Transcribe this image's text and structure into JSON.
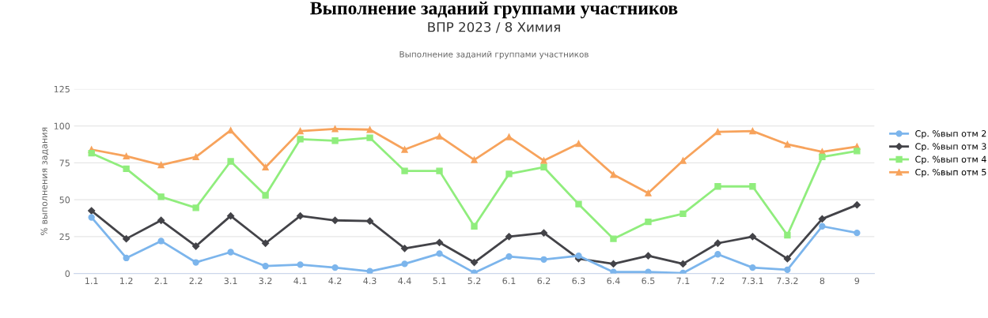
{
  "chart_data": {
    "type": "line",
    "title": "ВПР 2023 / 8 Химия",
    "subtitle": "Выполнение заданий группами участников",
    "annotations": [
      "Выполнение заданий группами участников"
    ],
    "ylabel": "% выполнения задания",
    "categories": [
      "1.1",
      "1.2",
      "2.1",
      "2.2",
      "3.1",
      "3.2",
      "4.1",
      "4.2",
      "4.3",
      "4.4",
      "5.1",
      "5.2",
      "6.1",
      "6.2",
      "6.3",
      "6.4",
      "6.5",
      "7.1",
      "7.2",
      "7.3.1",
      "7.3.2",
      "8",
      "9"
    ],
    "series": [
      {
        "name": "Ср. %вып отм 2",
        "color": "#7cb5ec",
        "marker": "circle",
        "values": [
          38,
          10.5,
          22,
          7.5,
          14.5,
          5,
          6,
          4,
          1.5,
          6.5,
          13.5,
          0.5,
          11.5,
          9.5,
          12,
          1,
          1,
          0.3,
          13,
          4,
          2.5,
          32,
          27.5
        ]
      },
      {
        "name": "Ср. %вып отм 3",
        "color": "#434348",
        "marker": "diamond",
        "values": [
          42.5,
          23.5,
          36,
          18.5,
          39,
          20.5,
          39,
          36,
          35.5,
          17,
          21,
          7.5,
          25,
          27.5,
          10,
          6.5,
          12,
          6.5,
          20.5,
          25,
          10,
          37,
          46.5
        ]
      },
      {
        "name": "Ср. %вып отм 4",
        "color": "#90ed7d",
        "marker": "square",
        "values": [
          81.5,
          71,
          52,
          44.5,
          76,
          53,
          91,
          90,
          92,
          69.5,
          69.5,
          32,
          67.5,
          72,
          47,
          23.5,
          35,
          40.5,
          59,
          59,
          26,
          79,
          83
        ]
      },
      {
        "name": "Ср. %вып отм 5",
        "color": "#f7a35c",
        "marker": "triangle",
        "values": [
          84,
          79.5,
          73.5,
          79,
          97,
          72,
          96.5,
          98,
          97.5,
          84,
          93,
          77,
          92.5,
          76.5,
          88,
          67,
          54.5,
          76.5,
          96,
          96.5,
          87.5,
          82.5,
          86
        ]
      }
    ],
    "ylim": [
      0,
      125
    ],
    "yticks": [
      0,
      25,
      50,
      75,
      100,
      125
    ],
    "grid": "y",
    "legend": "right"
  }
}
